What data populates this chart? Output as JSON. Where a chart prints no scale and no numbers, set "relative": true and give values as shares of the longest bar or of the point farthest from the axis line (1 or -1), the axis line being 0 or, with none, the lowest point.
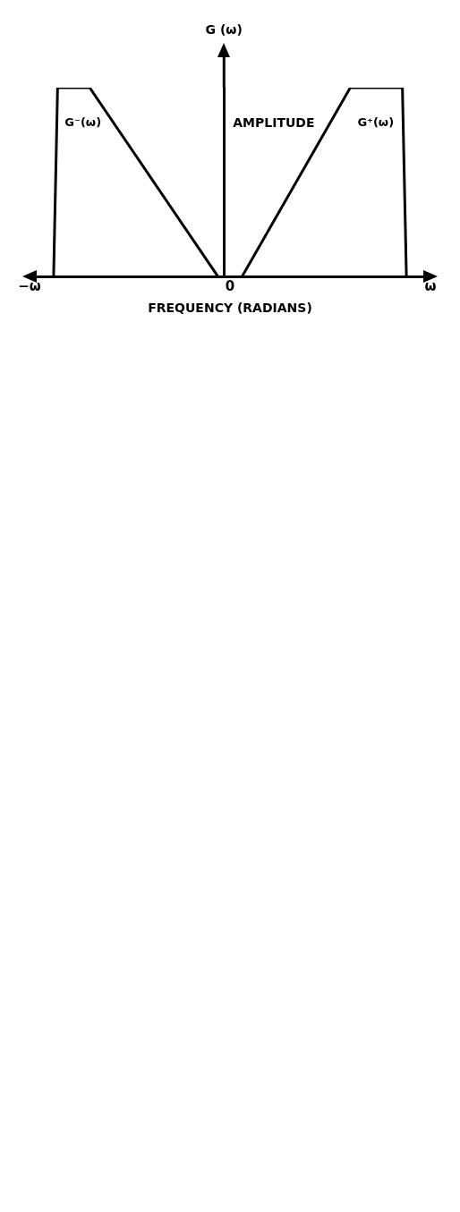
{
  "chart_data": {
    "type": "line",
    "relative": true,
    "xlabel": "FREQUENCY (RADIANS)",
    "ylabel": "AMPLITUDE",
    "categories": [
      "−ω",
      null,
      null,
      null,
      null,
      null,
      null,
      null,
      null,
      null,
      null,
      null,
      null,
      null,
      null,
      null,
      null,
      null,
      null,
      null,
      null,
      null,
      null,
      null,
      null,
      null,
      null,
      null,
      null,
      null,
      null,
      null,
      null,
      null,
      null,
      null,
      null,
      null,
      null,
      null,
      null,
      null,
      null,
      null,
      null,
      null,
      null,
      null,
      null,
      null,
      "0",
      null,
      null,
      null,
      null,
      null,
      null,
      null,
      null,
      null,
      null,
      null,
      null,
      null,
      null,
      null,
      null,
      null,
      null,
      null,
      null,
      null,
      null,
      null,
      null,
      null,
      null,
      null,
      null,
      null,
      null,
      null,
      null,
      null,
      null,
      null,
      null,
      null,
      null,
      null,
      null,
      null,
      null,
      null,
      null,
      null,
      null,
      null,
      null,
      null,
      "ω"
    ],
    "grid": false,
    "legend": false,
    "marker": "none",
    "line_style": "solid",
    "annotations": [
      "G (ω)"
    ],
    "series": [
      {
        "name": "G⁻(ω)",
        "color": "#000000",
        "values": [
          null,
          null,
          null,
          null,
          null,
          null,
          0,
          1,
          null,
          null,
          null,
          null,
          null,
          null,
          null,
          1,
          null,
          null,
          null,
          null,
          null,
          null,
          null,
          null,
          null,
          null,
          null,
          null,
          null,
          null,
          null,
          null,
          null,
          null,
          null,
          null,
          null,
          null,
          null,
          null,
          null,
          null,
          null,
          null,
          null,
          null,
          null,
          0,
          null,
          null,
          null,
          null,
          null,
          null,
          null,
          null,
          null,
          null,
          null,
          null,
          null,
          null,
          null,
          null,
          null,
          null,
          null,
          null,
          null,
          null,
          null,
          null,
          null,
          null,
          null,
          null,
          null,
          null,
          null,
          null,
          null,
          null,
          null,
          null,
          null,
          null,
          null,
          null,
          null,
          null,
          null,
          null,
          null,
          null,
          null,
          null,
          null,
          null,
          null,
          null,
          null
        ]
      },
      {
        "name": "G⁺(ω)",
        "color": "#000000",
        "values": [
          null,
          null,
          null,
          null,
          null,
          null,
          null,
          null,
          null,
          null,
          null,
          null,
          null,
          null,
          null,
          null,
          null,
          null,
          null,
          null,
          null,
          null,
          null,
          null,
          null,
          null,
          null,
          null,
          null,
          null,
          null,
          null,
          null,
          null,
          null,
          null,
          null,
          null,
          null,
          null,
          null,
          null,
          null,
          null,
          null,
          null,
          null,
          null,
          null,
          null,
          null,
          null,
          null,
          0,
          null,
          null,
          null,
          null,
          null,
          null,
          null,
          null,
          null,
          null,
          null,
          null,
          null,
          null,
          null,
          null,
          null,
          null,
          null,
          null,
          null,
          null,
          null,
          null,
          null,
          null,
          1,
          null,
          null,
          null,
          null,
          null,
          null,
          null,
          null,
          null,
          null,
          null,
          null,
          1,
          0,
          null,
          null,
          null,
          null,
          null,
          null
        ]
      }
    ]
  }
}
